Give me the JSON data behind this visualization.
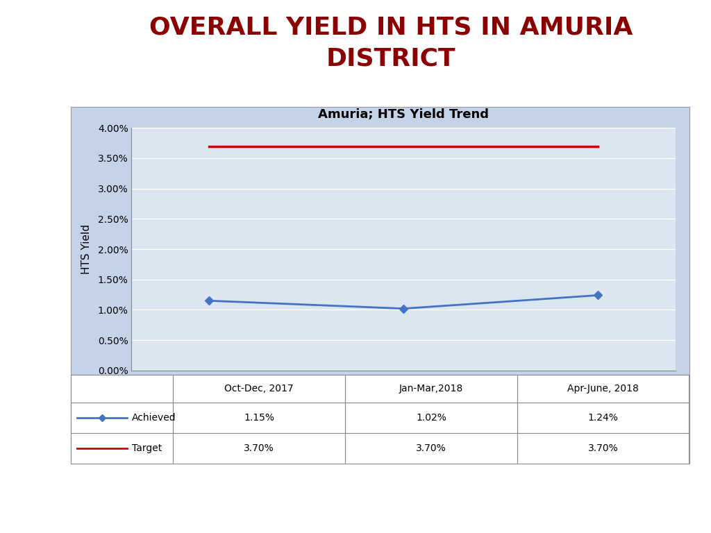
{
  "title_line1": "OVERALL YIELD IN HTS IN AMURIA",
  "title_line2": "DISTRICT",
  "title_color": "#8B0000",
  "chart_title": "Amuria; HTS Yield Trend",
  "categories": [
    "Oct-Dec, 2017",
    "Jan-Mar,2018",
    "Apr-June, 2018"
  ],
  "achieved_values": [
    1.15,
    1.02,
    1.24
  ],
  "target_values": [
    3.7,
    3.7,
    3.7
  ],
  "achieved_label": "Achieved",
  "target_label": "Target",
  "achieved_color": "#4472C4",
  "target_color": "#CC0000",
  "ylabel": "HTS Yield",
  "yticks": [
    0.0,
    0.5,
    1.0,
    1.5,
    2.0,
    2.5,
    3.0,
    3.5,
    4.0
  ],
  "chart_bg_color": "#DCE6F1",
  "panel_bg_color": "#C5D3E8",
  "page_bg_color": "#FFFFFF",
  "table_row1": [
    "1.15%",
    "1.02%",
    "1.24%"
  ],
  "table_row2": [
    "3.70%",
    "3.70%",
    "3.70%"
  ],
  "grid_color": "#AAAAAA",
  "spine_color": "#888888"
}
